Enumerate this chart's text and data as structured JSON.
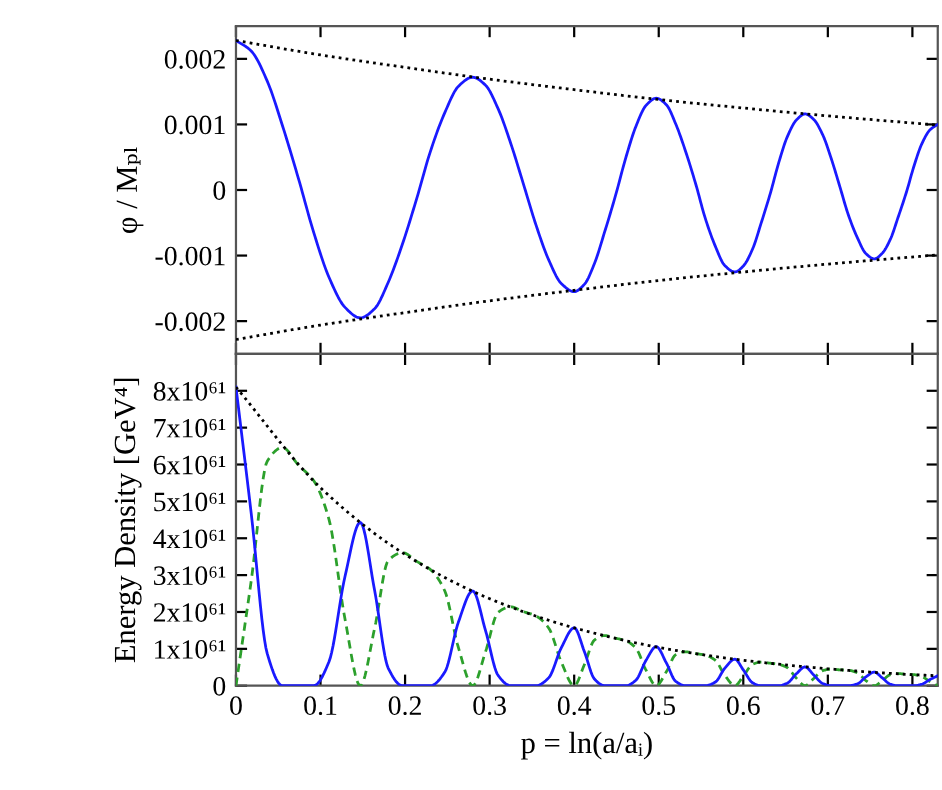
{
  "chart_data": [
    {
      "type": "line",
      "ylabel": "φ / Mₚₗ",
      "xlim": [
        0,
        0.83
      ],
      "ylim": [
        -0.0025,
        0.0025
      ],
      "xticks": [
        0,
        0.1,
        0.2,
        0.3,
        0.4,
        0.5,
        0.6,
        0.7,
        0.8
      ],
      "yticks": [
        -0.002,
        -0.001,
        0,
        0.001,
        0.002
      ],
      "tick_labels": "y",
      "grid": false,
      "x": [
        0,
        0.018,
        0.037,
        0.055,
        0.074,
        0.092,
        0.11,
        0.129,
        0.147,
        0.164,
        0.18,
        0.197,
        0.214,
        0.23,
        0.247,
        0.263,
        0.28,
        0.295,
        0.31,
        0.325,
        0.34,
        0.355,
        0.37,
        0.385,
        0.4,
        0.412,
        0.424,
        0.436,
        0.449,
        0.461,
        0.473,
        0.485,
        0.497,
        0.509,
        0.52,
        0.532,
        0.544,
        0.555,
        0.567,
        0.578,
        0.59,
        0.6,
        0.611,
        0.621,
        0.632,
        0.642,
        0.652,
        0.663,
        0.673,
        0.683,
        0.694,
        0.704,
        0.714,
        0.724,
        0.735,
        0.745,
        0.755,
        0.764,
        0.774,
        0.783,
        0.793,
        0.802,
        0.811,
        0.821,
        0.83
      ],
      "series": [
        {
          "color": "#1a1aff",
          "line_style": "solid",
          "values": [
            0.00228,
            0.00212,
            0.00166,
            0.00098,
            0.00017,
            -0.00065,
            -0.00133,
            -0.00179,
            -0.00195,
            -0.00181,
            -0.00141,
            -0.00082,
            -0.00012,
            0.00059,
            0.00118,
            0.00158,
            0.00172,
            0.0016,
            0.00124,
            0.00071,
            9e-05,
            -0.00054,
            -0.00107,
            -0.00143,
            -0.00155,
            -0.00144,
            -0.00112,
            -0.00064,
            -8e-05,
            0.00049,
            0.00097,
            0.00129,
            0.0014,
            0.0013,
            0.00101,
            0.00058,
            8e-05,
            -0.00043,
            -0.00086,
            -0.00115,
            -0.00125,
            -0.00116,
            -0.0009,
            -0.00051,
            -5e-05,
            0.00042,
            0.00081,
            0.00107,
            0.00116,
            0.00108,
            0.00084,
            0.00048,
            6e-05,
            -0.00037,
            -0.00073,
            -0.00097,
            -0.00105,
            -0.00097,
            -0.00075,
            -0.00042,
            -3e-05,
            0.00037,
            0.0007,
            0.00092,
            0.001
          ]
        },
        {
          "color": "#000000",
          "line_style": "dotted",
          "x": [
            0,
            0.1,
            0.2,
            0.3,
            0.4,
            0.5,
            0.6,
            0.7,
            0.83
          ],
          "values": [
            0.00228,
            0.00206,
            0.00187,
            0.00169,
            0.00153,
            0.00138,
            0.00125,
            0.00113,
            0.00099
          ]
        },
        {
          "color": "#000000",
          "line_style": "dotted",
          "x": [
            0,
            0.1,
            0.2,
            0.3,
            0.4,
            0.5,
            0.6,
            0.7,
            0.83
          ],
          "values": [
            -0.00228,
            -0.00206,
            -0.00187,
            -0.00169,
            -0.00153,
            -0.00138,
            -0.00125,
            -0.00113,
            -0.00099
          ]
        }
      ]
    },
    {
      "type": "line",
      "xlabel": "p = ln(a/aᵢ)",
      "ylabel": "Energy Density [GeV⁴]",
      "xlim": [
        0,
        0.83
      ],
      "ylim": [
        0,
        9e+61
      ],
      "xticks": [
        0,
        0.1,
        0.2,
        0.3,
        0.4,
        0.5,
        0.6,
        0.7,
        0.8
      ],
      "yticks": [
        0,
        {
          "value": 1e+61,
          "label": "1x10⁶¹"
        },
        {
          "value": 2e+61,
          "label": "2x10⁶¹"
        },
        {
          "value": 3e+61,
          "label": "3x10⁶¹"
        },
        {
          "value": 4e+61,
          "label": "4x10⁶¹"
        },
        {
          "value": 5e+61,
          "label": "5x10⁶¹"
        },
        {
          "value": 6e+61,
          "label": "6x10⁶¹"
        },
        {
          "value": 7e+61,
          "label": "7x10⁶¹"
        },
        {
          "value": 8e+61,
          "label": "8x10⁶¹"
        }
      ],
      "grid": false,
      "x": [
        0,
        0.018,
        0.037,
        0.055,
        0.074,
        0.092,
        0.11,
        0.129,
        0.147,
        0.164,
        0.18,
        0.197,
        0.214,
        0.23,
        0.247,
        0.263,
        0.28,
        0.295,
        0.31,
        0.325,
        0.34,
        0.355,
        0.37,
        0.385,
        0.4,
        0.412,
        0.424,
        0.436,
        0.449,
        0.461,
        0.473,
        0.485,
        0.497,
        0.509,
        0.52,
        0.532,
        0.544,
        0.555,
        0.567,
        0.578,
        0.59,
        0.6,
        0.611,
        0.621,
        0.632,
        0.642,
        0.652,
        0.663,
        0.673,
        0.683,
        0.694,
        0.704,
        0.714,
        0.724,
        0.735,
        0.745,
        0.755,
        0.764,
        0.774,
        0.783,
        0.793,
        0.802,
        0.811,
        0.821,
        0.83
      ],
      "series": [
        {
          "color": "#2ca02c",
          "line_style": "dashed",
          "values": [
            0,
            2.84e+61,
            6.09e+61,
            6.46e+61,
            5.98e+61,
            5.56e+61,
            4.51e+61,
            1.8e+61,
            0,
            1.56e+61,
            3.39e+61,
            3.61e+61,
            3.37e+61,
            3.15e+61,
            2.57e+61,
            1.04e+61,
            0,
            9.1e+60,
            1.99e+61,
            2.14e+61,
            2.01e+61,
            1.89e+61,
            1.56e+61,
            6.3e+60,
            0,
            5.7e+60,
            1.24e+61,
            1.36e+61,
            1.29e+61,
            1.22e+61,
            1.02e+61,
            4.2e+60,
            0,
            3.8e+60,
            8.4e+60,
            9.2e+60,
            8.7e+60,
            8.3e+60,
            6.9e+60,
            2.9e+60,
            0,
            2.6e+60,
            5.8e+60,
            6.4e+60,
            6.1e+60,
            5.8e+60,
            4.9e+60,
            2e+60,
            0,
            1.9e+60,
            4.1e+60,
            4.5e+60,
            4.3e+60,
            4.2e+60,
            3.5e+60,
            1.4e+60,
            0,
            1.3e+60,
            3e+60,
            3.3e+60,
            3.1e+60,
            3e+60,
            2.5e+60,
            1.1e+60,
            0
          ]
        },
        {
          "color": "#1a1aff",
          "line_style": "solid",
          "values": [
            8.1e+61,
            4.68e+61,
            8.7e+60,
            0,
            0,
            0,
            6.5e+60,
            2.97e+61,
            4.43e+61,
            2.58e+61,
            4.8e+60,
            0,
            0,
            0,
            3.7e+60,
            1.72e+61,
            2.57e+61,
            1.51e+61,
            2.8e+60,
            0,
            0,
            0,
            2.2e+60,
            1.04e+61,
            1.57e+61,
            9.3e+60,
            1.8e+60,
            0,
            0,
            0,
            1.5e+60,
            6.9e+60,
            1.06e+61,
            6.2e+60,
            1.2e+60,
            0,
            0,
            0,
            1e+60,
            4.7e+60,
            7.2e+60,
            4.3e+60,
            8e+59,
            0,
            0,
            0,
            7e+59,
            3.3e+60,
            5.1e+60,
            3e+60,
            6e+59,
            0,
            0,
            0,
            5e+59,
            2.4e+60,
            3.7e+60,
            2.2e+60,
            4e+59,
            0,
            0,
            0,
            4e+59,
            1.7e+60,
            2.7e+60
          ]
        },
        {
          "color": "#000000",
          "line_style": "dotted",
          "x": [
            0,
            0.1,
            0.2,
            0.3,
            0.4,
            0.5,
            0.6,
            0.7,
            0.8,
            0.83
          ],
          "values": [
            8.1e+61,
            5.37e+61,
            3.56e+61,
            2.36e+61,
            1.57e+61,
            1.04e+61,
            6.9e+60,
            4.6e+60,
            3e+60,
            2.7e+60
          ]
        }
      ]
    }
  ]
}
